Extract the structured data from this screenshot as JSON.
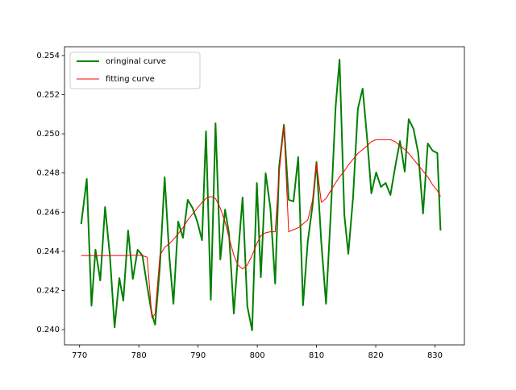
{
  "chart_data": {
    "type": "line",
    "x": [
      770.27,
      771.21,
      772.01,
      772.68,
      773.49,
      774.3,
      775.1,
      775.91,
      776.71,
      777.38,
      778.19,
      778.99,
      779.8,
      780.6,
      781.41,
      782.21,
      782.75,
      783.56,
      784.36,
      785.17,
      785.84,
      786.64,
      787.45,
      788.26,
      789.06,
      789.87,
      790.67,
      791.34,
      792.15,
      792.95,
      793.76,
      794.56,
      795.23,
      796.04,
      796.71,
      797.52,
      798.32,
      799.13,
      799.93,
      800.6,
      801.41,
      802.21,
      803.02,
      803.69,
      804.5,
      805.3,
      806.11,
      806.91,
      807.72,
      808.52,
      809.33,
      810.0,
      810.81,
      811.61,
      812.42,
      813.22,
      813.89,
      814.7,
      815.37,
      816.17,
      816.98,
      817.79,
      818.59,
      819.26,
      820.07,
      820.87,
      821.68,
      822.48,
      823.29,
      824.09,
      824.9,
      825.57,
      826.38,
      827.18,
      827.99,
      828.79,
      829.6,
      830.4,
      830.94
    ],
    "series": [
      {
        "name": "oringinal curve",
        "color": "#008000",
        "linewidth": 2,
        "values": [
          0.24539,
          0.2477,
          0.24122,
          0.24408,
          0.24251,
          0.24626,
          0.24383,
          0.24012,
          0.24263,
          0.24148,
          0.24506,
          0.24259,
          0.24408,
          0.24379,
          0.24222,
          0.24078,
          0.24025,
          0.24325,
          0.24778,
          0.24366,
          0.24132,
          0.24552,
          0.24469,
          0.24663,
          0.24622,
          0.24552,
          0.24457,
          0.25013,
          0.24152,
          0.25054,
          0.24358,
          0.24613,
          0.2449,
          0.24082,
          0.24366,
          0.24675,
          0.24119,
          0.23996,
          0.24749,
          0.24268,
          0.24799,
          0.24622,
          0.24235,
          0.24832,
          0.25046,
          0.24663,
          0.24655,
          0.24881,
          0.24124,
          0.24449,
          0.24634,
          0.24856,
          0.24445,
          0.24132,
          0.24601,
          0.25136,
          0.25379,
          0.24585,
          0.24387,
          0.24675,
          0.25128,
          0.25231,
          0.24963,
          0.24696,
          0.24803,
          0.24729,
          0.24749,
          0.24688,
          0.24832,
          0.24963,
          0.24807,
          0.25075,
          0.25025,
          0.24902,
          0.24593,
          0.24951,
          0.24914,
          0.24902,
          0.24506
        ]
      },
      {
        "name": "fitting curve",
        "color": "#ff0000",
        "linewidth": 1,
        "values": [
          0.24378,
          0.24378,
          0.24378,
          0.24378,
          0.24378,
          0.24378,
          0.24378,
          0.24378,
          0.24378,
          0.24378,
          0.24379,
          0.2438,
          0.2438,
          0.24378,
          0.2437,
          0.2406,
          0.2408,
          0.2438,
          0.2442,
          0.2444,
          0.2446,
          0.2449,
          0.2452,
          0.2456,
          0.2459,
          0.2462,
          0.2465,
          0.2467,
          0.2468,
          0.2467,
          0.2462,
          0.2455,
          0.2447,
          0.2438,
          0.2433,
          0.2431,
          0.2433,
          0.2438,
          0.2444,
          0.2448,
          0.24495,
          0.245,
          0.245,
          0.248,
          0.2504,
          0.245,
          0.2451,
          0.2452,
          0.2454,
          0.2456,
          0.2466,
          0.2485,
          0.2465,
          0.2467,
          0.2471,
          0.2475,
          0.2478,
          0.2481,
          0.2484,
          0.2487,
          0.249,
          0.2492,
          0.2494,
          0.2496,
          0.2497,
          0.2497,
          0.2497,
          0.2497,
          0.2496,
          0.2494,
          0.2492,
          0.249,
          0.2487,
          0.2484,
          0.2481,
          0.2478,
          0.2474,
          0.2471,
          0.2468
        ]
      }
    ],
    "xlim": [
      767.45,
      834.97
    ],
    "ylim": [
      0.23922,
      0.25445
    ],
    "xticks": [
      770,
      780,
      790,
      800,
      810,
      820,
      830
    ],
    "yticks": [
      {
        "value": 0.24,
        "label": "0.240"
      },
      {
        "value": 0.242,
        "label": "0.242"
      },
      {
        "value": 0.244,
        "label": "0.244"
      },
      {
        "value": 0.246,
        "label": "0.246"
      },
      {
        "value": 0.248,
        "label": "0.248"
      },
      {
        "value": 0.25,
        "label": "0.250"
      },
      {
        "value": 0.252,
        "label": "0.252"
      },
      {
        "value": 0.254,
        "label": "0.254"
      }
    ],
    "legend": "upper left"
  }
}
